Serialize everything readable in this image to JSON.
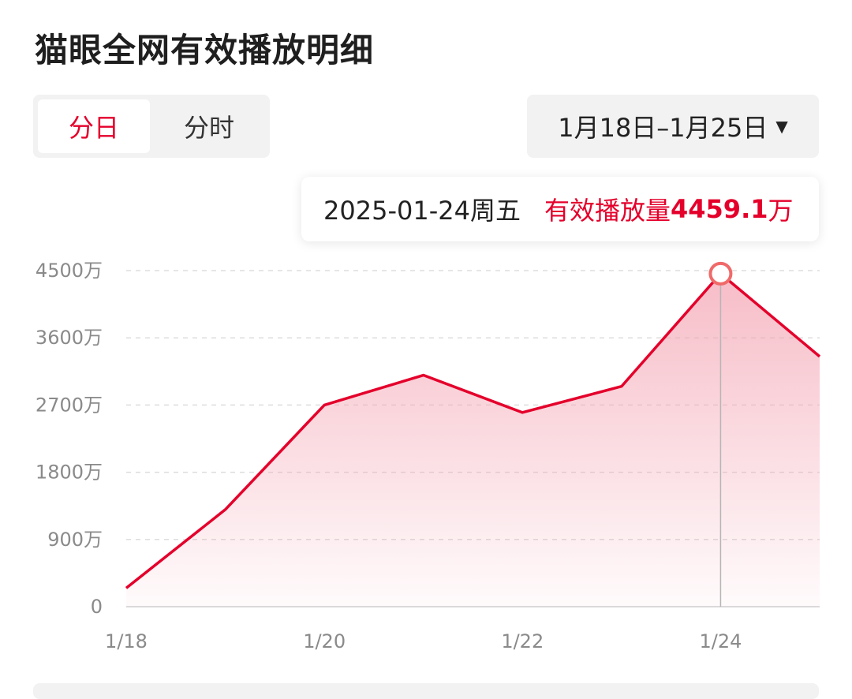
{
  "header": {
    "title": "猫眼全网有效播放明细"
  },
  "tabs": [
    {
      "label": "分日",
      "active": true
    },
    {
      "label": "分时",
      "active": false
    }
  ],
  "date_range": {
    "label": "1月18日–1月25日",
    "caret": "▼"
  },
  "tooltip": {
    "date": "2025-01-24周五",
    "metric_label": "有效播放量",
    "value": "4459.1",
    "unit": "万"
  },
  "colors": {
    "accent": "#e4002b",
    "grid": "#dddddd",
    "fill": "#f4a6b4"
  },
  "chart_data": {
    "type": "area",
    "x": [
      "1/18",
      "1/19",
      "1/20",
      "1/21",
      "1/22",
      "1/23",
      "1/24",
      "1/25"
    ],
    "values": [
      250,
      1300,
      2700,
      3100,
      2600,
      2950,
      4459.1,
      3350
    ],
    "y_ticks": [
      "0",
      "900万",
      "1800万",
      "2700万",
      "3600万",
      "4500万"
    ],
    "y_tick_values": [
      0,
      900,
      1800,
      2700,
      3600,
      4500
    ],
    "x_tick_labels": [
      "1/18",
      "1/20",
      "1/22",
      "1/24"
    ],
    "highlight_index": 6,
    "grid": true
  }
}
